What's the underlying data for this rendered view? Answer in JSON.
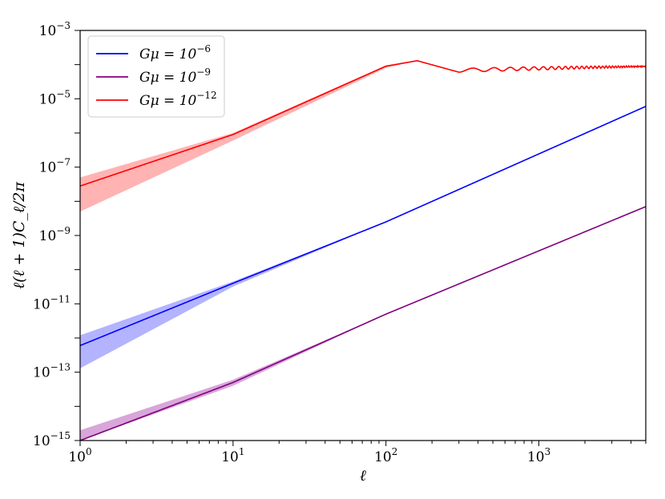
{
  "chart_data": {
    "type": "line",
    "x_scale": "log",
    "y_scale": "log",
    "xlim": [
      1,
      5000
    ],
    "ylim": [
      1e-15,
      0.001
    ],
    "xlabel": "ℓ",
    "ylabel": "ℓ(ℓ + 1)C_ℓ/2π",
    "x_ticks": [
      {
        "base": "10",
        "exp": "0",
        "value": 1
      },
      {
        "base": "10",
        "exp": "1",
        "value": 10
      },
      {
        "base": "10",
        "exp": "2",
        "value": 100
      },
      {
        "base": "10",
        "exp": "3",
        "value": 1000
      }
    ],
    "y_ticks": [
      {
        "base": "10",
        "exp": "−3",
        "value": 0.001
      },
      {
        "base": "10",
        "exp": "−5",
        "value": 1e-05
      },
      {
        "base": "10",
        "exp": "−7",
        "value": 1e-07
      },
      {
        "base": "10",
        "exp": "−9",
        "value": 1e-09
      },
      {
        "base": "10",
        "exp": "−11",
        "value": 1e-11
      },
      {
        "base": "10",
        "exp": "−13",
        "value": 1e-13
      },
      {
        "base": "10",
        "exp": "−15",
        "value": 1e-15
      }
    ],
    "legend_position": "top-left",
    "series": [
      {
        "name": "Gμ = 10⁻⁶",
        "legend_prefix": "Gμ = 10",
        "legend_exp": "−6",
        "color": "#0000ff",
        "band_color": "#9999ff",
        "x": [
          1,
          10,
          100,
          5000
        ],
        "y": [
          6e-13,
          4e-11,
          2.5e-09,
          6e-06
        ],
        "band_upper": [
          1.2e-12,
          4.5e-11,
          2.5e-09,
          6e-06
        ],
        "band_lower": [
          1.3e-13,
          3.2e-11,
          2.5e-09,
          6e-06
        ]
      },
      {
        "name": "Gμ = 10⁻⁹",
        "legend_prefix": "Gμ = 10",
        "legend_exp": "−9",
        "color": "#800080",
        "band_color": "#cc88cc",
        "x": [
          1,
          10,
          100,
          5000
        ],
        "y": [
          1e-15,
          5e-14,
          5e-12,
          7e-09
        ],
        "band_upper": [
          2e-15,
          6e-14,
          5e-12,
          7e-09
        ],
        "band_lower": [
          1e-15,
          4e-14,
          5e-12,
          7e-09
        ]
      },
      {
        "name": "Gμ = 10⁻¹²",
        "legend_prefix": "Gμ = 10",
        "legend_exp": "−12",
        "color": "#ff0000",
        "band_color": "#ff9999",
        "x": [
          1,
          10,
          100,
          160,
          300,
          5000
        ],
        "y": [
          2.8e-08,
          9e-07,
          9e-05,
          0.00013,
          6e-05,
          8.5e-05
        ],
        "band_upper": [
          5e-08,
          1e-06,
          9.5e-05,
          0.00013,
          6e-05,
          8.5e-05
        ],
        "band_lower": [
          5e-09,
          6e-07,
          8e-05,
          0.00013,
          6e-05,
          8.5e-05
        ]
      }
    ]
  }
}
